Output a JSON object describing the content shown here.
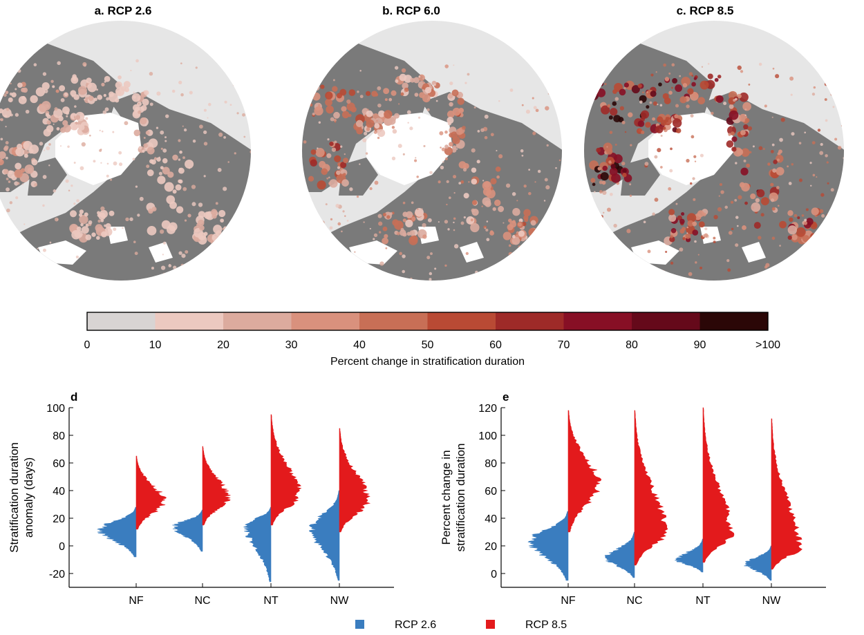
{
  "maps": [
    {
      "title": "a. RCP 2.6",
      "intensity": 0.3
    },
    {
      "title": "b. RCP 6.0",
      "intensity": 0.62
    },
    {
      "title": "c. RCP 8.5",
      "intensity": 1.0
    }
  ],
  "colorbar": {
    "label": "Percent change in stratification duration",
    "ticks": [
      "0",
      "10",
      "20",
      "30",
      "40",
      "50",
      "60",
      "70",
      "80",
      "90",
      ">100"
    ],
    "colors": [
      "#d8d4d3",
      "#ecc9c0",
      "#dcab9e",
      "#d9917d",
      "#c86f56",
      "#b94a34",
      "#9e2a28",
      "#870f25",
      "#65091a",
      "#2b0707"
    ]
  },
  "colors": {
    "rcp26": "#3a7dbf",
    "rcp85": "#e31a1c",
    "land": "#7a7a7a",
    "ocean": "#e6e6e6",
    "ice": "#ffffff"
  },
  "legend": [
    {
      "label": "RCP 2.6",
      "color": "#3a7dbf"
    },
    {
      "label": "RCP 8.5",
      "color": "#e31a1c"
    }
  ],
  "chart_data": [
    {
      "panel": "d",
      "type": "violin-histogram",
      "ylabel": "Stratification duration anomaly (days)",
      "ylim": [
        -30,
        100
      ],
      "yticks": [
        -20,
        0,
        20,
        40,
        60,
        80,
        100
      ],
      "categories": [
        "NF",
        "NC",
        "NT",
        "NW"
      ],
      "series": [
        {
          "name": "RCP 2.6",
          "side": "left",
          "groups": [
            {
              "mode": 12,
              "min": -8,
              "max": 28,
              "width": 0.72
            },
            {
              "mode": 14,
              "min": -4,
              "max": 26,
              "width": 0.55
            },
            {
              "mode": 15,
              "min": -26,
              "max": 28,
              "width": 0.5
            },
            {
              "mode": 13,
              "min": -25,
              "max": 40,
              "width": 0.55
            }
          ]
        },
        {
          "name": "RCP 8.5",
          "side": "right",
          "groups": [
            {
              "mode": 32,
              "min": 12,
              "max": 65,
              "width": 0.55
            },
            {
              "mode": 35,
              "min": 15,
              "max": 72,
              "width": 0.5
            },
            {
              "mode": 37,
              "min": 15,
              "max": 95,
              "width": 0.55
            },
            {
              "mode": 33,
              "min": 10,
              "max": 85,
              "width": 0.57
            }
          ]
        }
      ]
    },
    {
      "panel": "e",
      "type": "violin-histogram",
      "ylabel": "Percent change in stratification duration",
      "ylim": [
        -10,
        120
      ],
      "yticks": [
        0,
        20,
        40,
        60,
        80,
        100,
        120
      ],
      "categories": [
        "NF",
        "NC",
        "NT",
        "NW"
      ],
      "series": [
        {
          "name": "RCP 2.6",
          "side": "left",
          "groups": [
            {
              "mode": 24,
              "min": -5,
              "max": 45,
              "width": 0.75
            },
            {
              "mode": 11,
              "min": -3,
              "max": 30,
              "width": 0.55
            },
            {
              "mode": 10,
              "min": 1,
              "max": 25,
              "width": 0.5
            },
            {
              "mode": 7,
              "min": -5,
              "max": 20,
              "width": 0.5
            }
          ]
        },
        {
          "name": "RCP 8.5",
          "side": "right",
          "groups": [
            {
              "mode": 64,
              "min": 30,
              "max": 118,
              "width": 0.6
            },
            {
              "mode": 30,
              "min": 6,
              "max": 118,
              "width": 0.6
            },
            {
              "mode": 28,
              "min": 8,
              "max": 120,
              "width": 0.55
            },
            {
              "mode": 19,
              "min": 3,
              "max": 112,
              "width": 0.55
            }
          ]
        }
      ]
    }
  ]
}
